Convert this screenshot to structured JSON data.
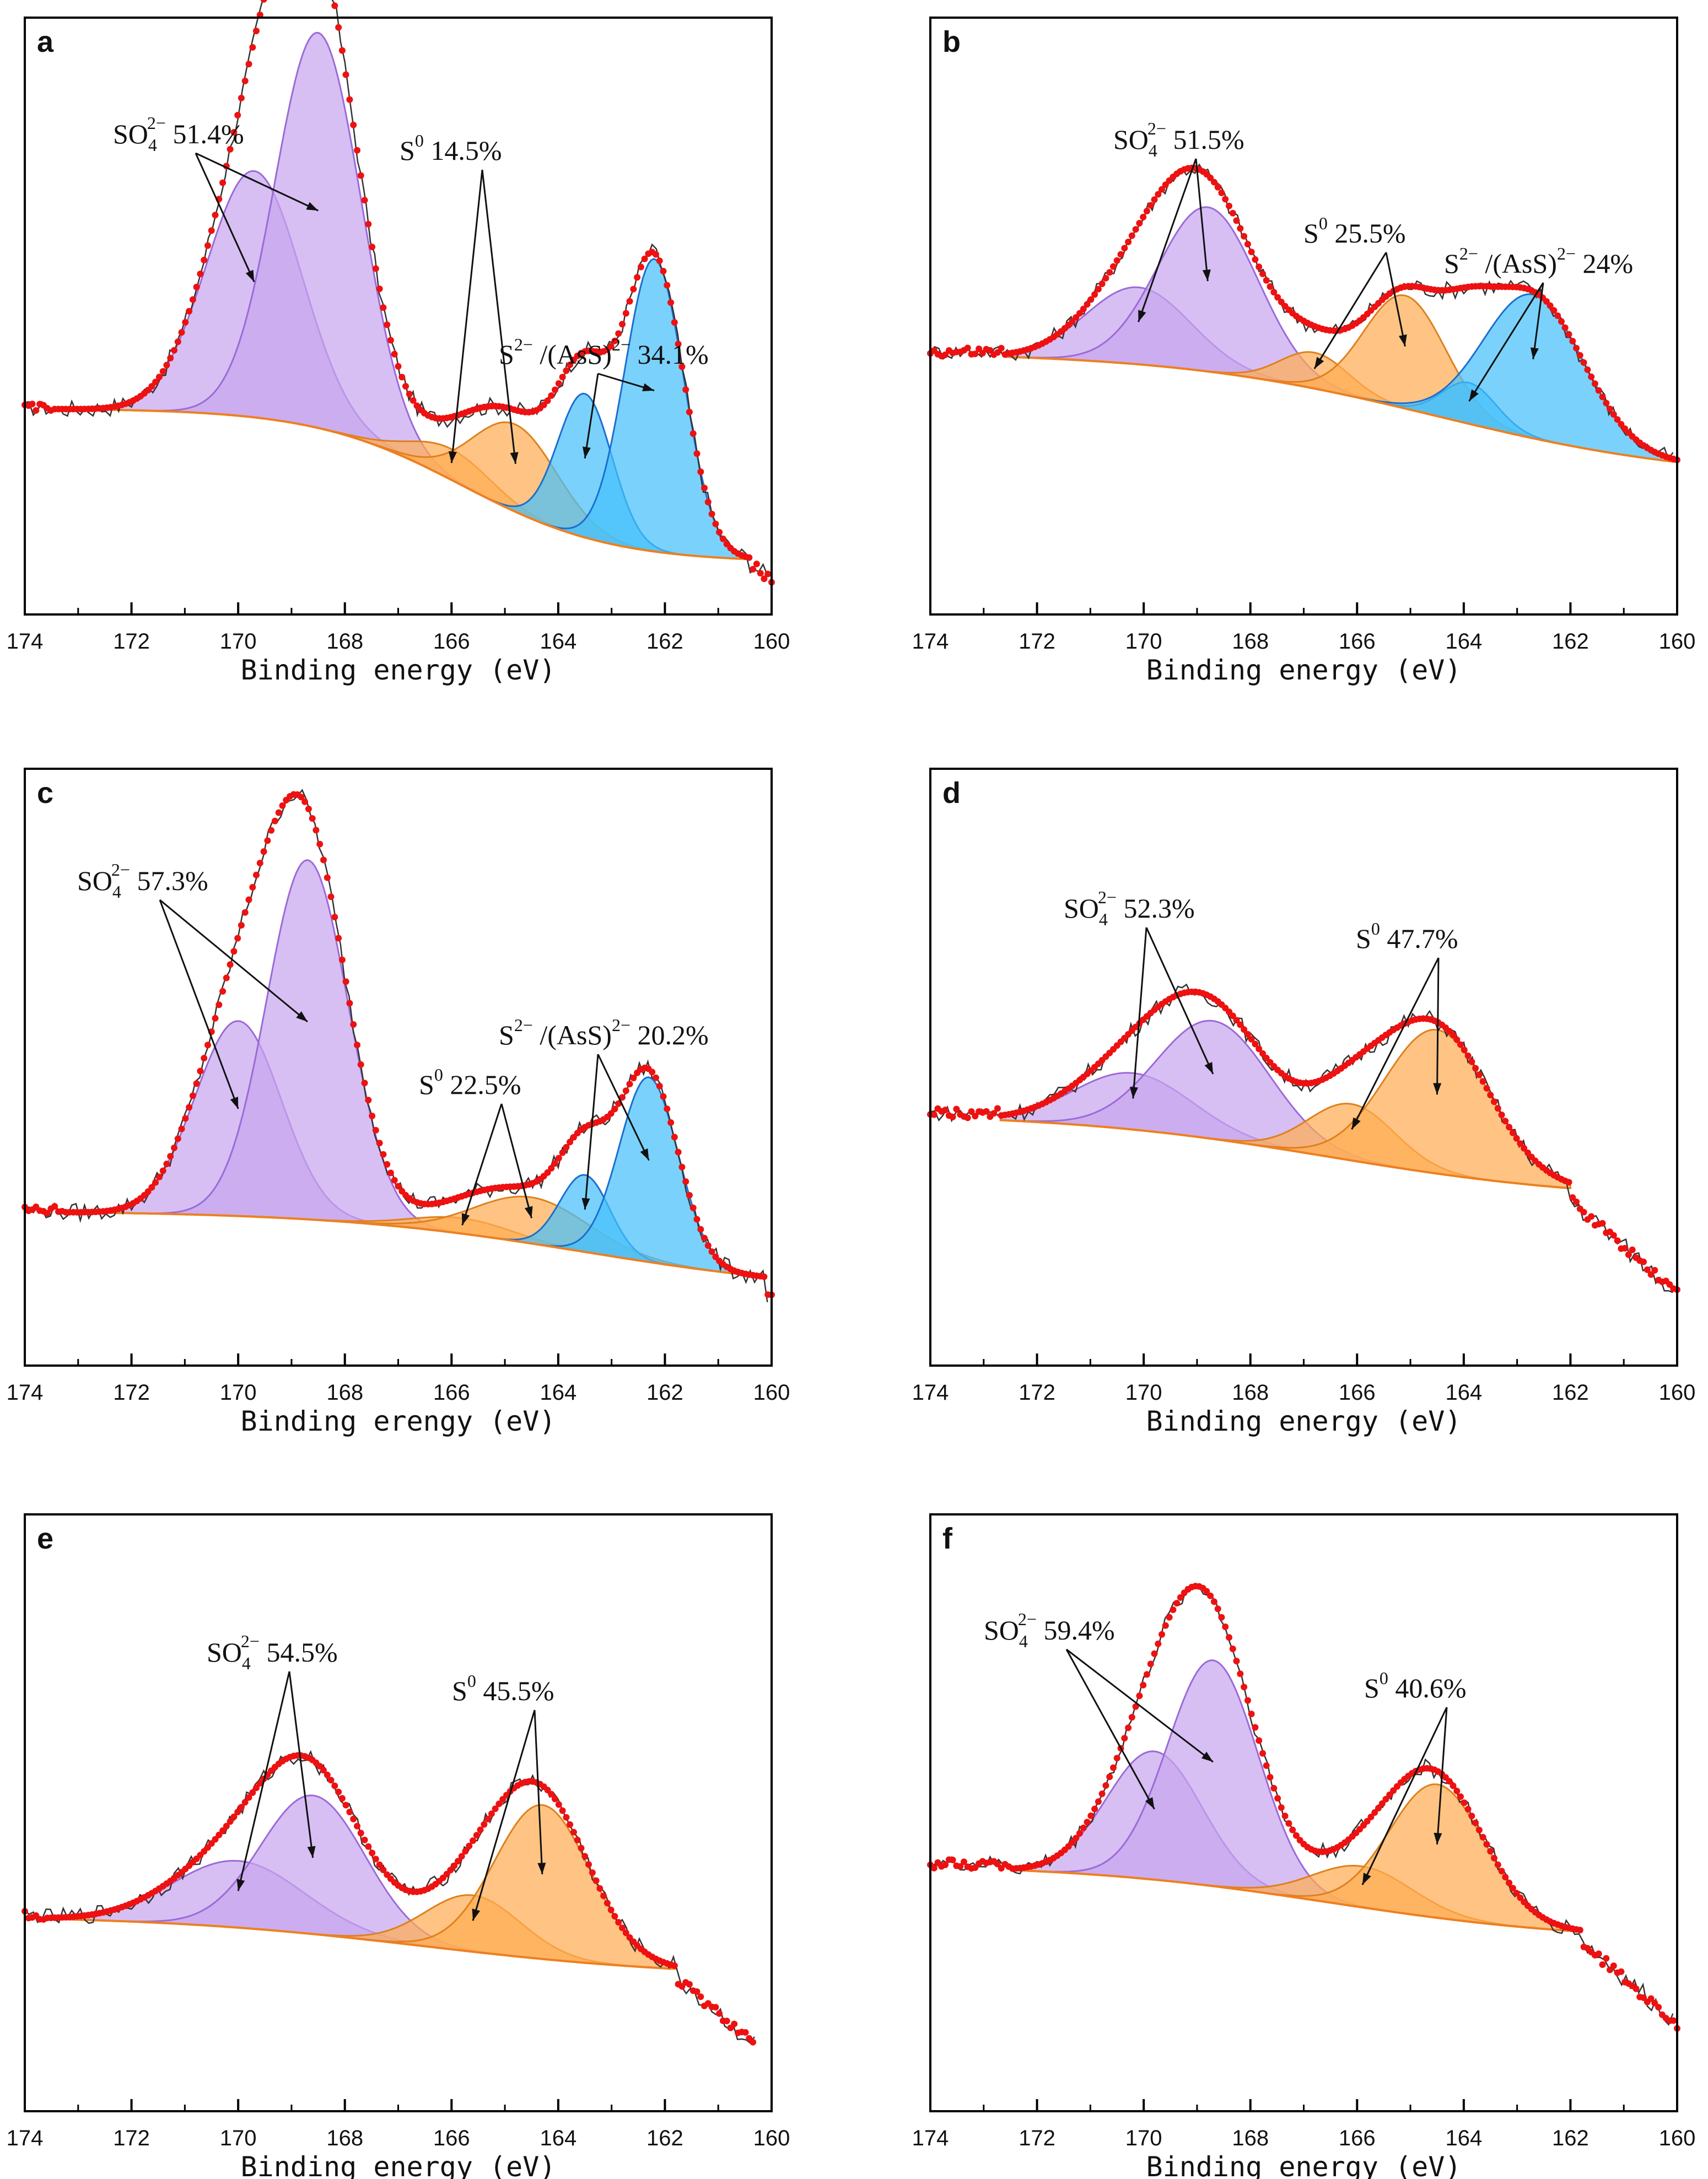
{
  "colors": {
    "sulfate_fill": "#c8a6ee",
    "sulfate_line": "#9c6ad8",
    "s0_fill": "#ffad55",
    "s0_line": "#e0801c",
    "sulfide_fill": "#47c1fb",
    "sulfide_line": "#1a6fd0",
    "envelope": "#ee1111",
    "raw": "#333333",
    "baseline": "#ee7f1f",
    "frame": "#000000"
  },
  "chart_data": [
    {
      "type": "line",
      "panel_label": "a",
      "xlabel": "Binding energy (eV)",
      "xlim": [
        174,
        160
      ],
      "x_ticks": [
        "174",
        "172",
        "170",
        "168",
        "166",
        "164",
        "162",
        "160"
      ],
      "baseline": {
        "start": 173.5,
        "end": 160.4,
        "y_start": 0.32,
        "y_end": 0.02,
        "sigmoid_center": 165.8,
        "sigmoid_width": 1.4
      },
      "data_extent": [
        174,
        160
      ],
      "components": [
        {
          "species": "sulfate",
          "center": 169.7,
          "fwhm": 2.1,
          "amplitude": 0.48
        },
        {
          "species": "sulfate",
          "center": 168.5,
          "fwhm": 1.9,
          "amplitude": 0.77
        },
        {
          "species": "s0",
          "center": 166.0,
          "fwhm": 1.8,
          "amplitude": 0.06
        },
        {
          "species": "s0",
          "center": 164.8,
          "fwhm": 1.9,
          "amplitude": 0.17
        },
        {
          "species": "sulfide",
          "center": 163.5,
          "fwhm": 1.2,
          "amplitude": 0.28
        },
        {
          "species": "sulfide",
          "center": 162.2,
          "fwhm": 1.3,
          "amplitude": 0.57
        }
      ],
      "annotations": [
        {
          "species": "SO",
          "sub": "4",
          "sup": "2−",
          "value": "51.4%"
        },
        {
          "species": "S",
          "sup": "0",
          "value": "14.5%"
        },
        {
          "species": "S",
          "sup": "2−",
          "mid": "/(AsS)",
          "sup2": "2−",
          "value": "34.1%"
        }
      ]
    },
    {
      "type": "line",
      "panel_label": "b",
      "xlabel": "Binding energy (eV)",
      "xlim": [
        174,
        160
      ],
      "x_ticks": [
        "174",
        "172",
        "170",
        "168",
        "166",
        "164",
        "162",
        "160"
      ],
      "baseline": {
        "start": 172.6,
        "end": 160.0,
        "y_start": 0.43,
        "y_end": 0.18,
        "sigmoid_center": 164.5,
        "sigmoid_width": 2.5
      },
      "data_extent": [
        174,
        160
      ],
      "components": [
        {
          "species": "sulfate",
          "center": 170.1,
          "fwhm": 2.3,
          "amplitude": 0.15
        },
        {
          "species": "sulfate",
          "center": 168.8,
          "fwhm": 2.2,
          "amplitude": 0.32
        },
        {
          "species": "s0",
          "center": 166.8,
          "fwhm": 1.5,
          "amplitude": 0.07
        },
        {
          "species": "s0",
          "center": 165.1,
          "fwhm": 1.8,
          "amplitude": 0.22
        },
        {
          "species": "sulfide",
          "center": 163.9,
          "fwhm": 1.2,
          "amplitude": 0.08
        },
        {
          "species": "sulfide",
          "center": 162.7,
          "fwhm": 2.2,
          "amplitude": 0.28
        }
      ],
      "annotations": [
        {
          "species": "SO",
          "sub": "4",
          "sup": "2−",
          "value": "51.5%"
        },
        {
          "species": "S",
          "sup": "0",
          "value": "25.5%"
        },
        {
          "species": "S",
          "sup": "2−",
          "mid": "/(AsS)",
          "sup2": "2−",
          "value": "24%"
        }
      ]
    },
    {
      "type": "line",
      "panel_label": "c",
      "xlabel": "Binding erengy (eV)",
      "xlim": [
        174,
        160
      ],
      "x_ticks": [
        "174",
        "172",
        "170",
        "168",
        "166",
        "164",
        "162",
        "160"
      ],
      "baseline": {
        "start": 173.3,
        "end": 160.1,
        "y_start": 0.22,
        "y_end": 0.06,
        "sigmoid_center": 163.5,
        "sigmoid_width": 2.4
      },
      "data_extent": [
        174,
        160
      ],
      "components": [
        {
          "species": "sulfate",
          "center": 170.0,
          "fwhm": 1.9,
          "amplitude": 0.38
        },
        {
          "species": "sulfate",
          "center": 168.7,
          "fwhm": 1.8,
          "amplitude": 0.7
        },
        {
          "species": "s0",
          "center": 165.8,
          "fwhm": 2.2,
          "amplitude": 0.03
        },
        {
          "species": "s0",
          "center": 164.5,
          "fwhm": 2.5,
          "amplitude": 0.09
        },
        {
          "species": "sulfide",
          "center": 163.5,
          "fwhm": 1.1,
          "amplitude": 0.15
        },
        {
          "species": "sulfide",
          "center": 162.3,
          "fwhm": 1.3,
          "amplitude": 0.36
        }
      ],
      "annotations": [
        {
          "species": "SO",
          "sub": "4",
          "sup": "2−",
          "value": "57.3%"
        },
        {
          "species": "S",
          "sup": "0",
          "value": "22.5%"
        },
        {
          "species": "S",
          "sup": "2−",
          "mid": "/(AsS)",
          "sup2": "2−",
          "value": "20.2%"
        }
      ]
    },
    {
      "type": "line",
      "panel_label": "d",
      "xlabel": "Binding energy (eV)",
      "xlim": [
        174,
        160
      ],
      "x_ticks": [
        "174",
        "172",
        "170",
        "168",
        "166",
        "164",
        "162",
        "160"
      ],
      "baseline": {
        "start": 172.7,
        "end": 162.0,
        "y_start": 0.41,
        "y_end": 0.24,
        "sigmoid_center": 166.5,
        "sigmoid_width": 2.5
      },
      "data_extent": [
        174,
        160
      ],
      "components": [
        {
          "species": "sulfate",
          "center": 170.2,
          "fwhm": 2.6,
          "amplitude": 0.11
        },
        {
          "species": "sulfate",
          "center": 168.7,
          "fwhm": 2.5,
          "amplitude": 0.23
        },
        {
          "species": "s0",
          "center": 166.1,
          "fwhm": 1.9,
          "amplitude": 0.11
        },
        {
          "species": "s0",
          "center": 164.5,
          "fwhm": 2.3,
          "amplitude": 0.28
        }
      ],
      "annotations": [
        {
          "species": "SO",
          "sub": "4",
          "sup": "2−",
          "value": "52.3%"
        },
        {
          "species": "S",
          "sup": "0",
          "value": "47.7%"
        }
      ]
    },
    {
      "type": "line",
      "panel_label": "e",
      "xlabel": "Binding energy (eV)",
      "xlim": [
        174,
        160
      ],
      "x_ticks": [
        "174",
        "172",
        "170",
        "168",
        "166",
        "164",
        "162",
        "160"
      ],
      "baseline": {
        "start": 173.6,
        "end": 161.8,
        "y_start": 0.3,
        "y_end": 0.18,
        "sigmoid_center": 166.5,
        "sigmoid_width": 2.5
      },
      "data_extent": [
        174,
        160.3
      ],
      "components": [
        {
          "species": "sulfate",
          "center": 170.0,
          "fwhm": 2.9,
          "amplitude": 0.13
        },
        {
          "species": "sulfate",
          "center": 168.6,
          "fwhm": 2.3,
          "amplitude": 0.27
        },
        {
          "species": "s0",
          "center": 165.6,
          "fwhm": 2.1,
          "amplitude": 0.11
        },
        {
          "species": "s0",
          "center": 164.3,
          "fwhm": 2.1,
          "amplitude": 0.3
        }
      ],
      "annotations": [
        {
          "species": "SO",
          "sub": "4",
          "sup": "2−",
          "value": "54.5%"
        },
        {
          "species": "S",
          "sup": "0",
          "value": "45.5%"
        }
      ]
    },
    {
      "type": "line",
      "panel_label": "f",
      "xlabel": "Binding energy (eV)",
      "xlim": [
        174,
        160
      ],
      "x_ticks": [
        "174",
        "172",
        "170",
        "168",
        "166",
        "164",
        "162",
        "160"
      ],
      "baseline": {
        "start": 172.5,
        "end": 161.8,
        "y_start": 0.4,
        "y_end": 0.25,
        "sigmoid_center": 166.5,
        "sigmoid_width": 2.4
      },
      "data_extent": [
        174,
        160
      ],
      "components": [
        {
          "species": "sulfate",
          "center": 169.8,
          "fwhm": 2.1,
          "amplitude": 0.25
        },
        {
          "species": "sulfate",
          "center": 168.7,
          "fwhm": 2.0,
          "amplitude": 0.44
        },
        {
          "species": "s0",
          "center": 165.9,
          "fwhm": 2.2,
          "amplitude": 0.08
        },
        {
          "species": "s0",
          "center": 164.5,
          "fwhm": 2.1,
          "amplitude": 0.26
        }
      ],
      "annotations": [
        {
          "species": "SO",
          "sub": "4",
          "sup": "2−",
          "value": "59.4%"
        },
        {
          "species": "S",
          "sup": "0",
          "value": "40.6%"
        }
      ]
    }
  ]
}
